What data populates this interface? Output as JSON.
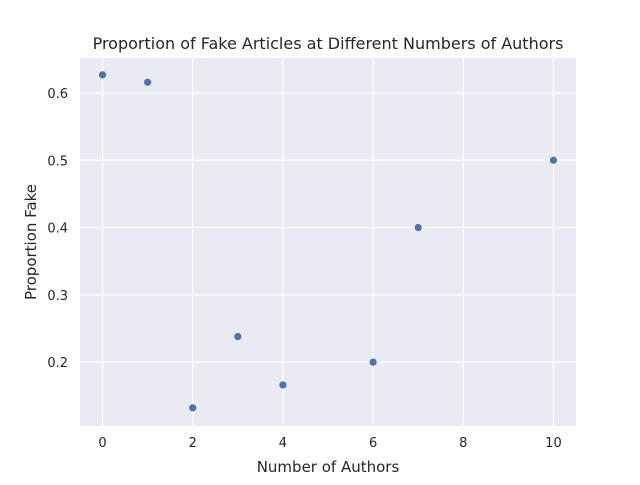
{
  "chart_data": {
    "type": "scatter",
    "title": "Proportion of Fake Articles at Different Numbers of Authors",
    "xlabel": "Number of Authors",
    "ylabel": "Proportion Fake",
    "xlim": [
      -0.5,
      10.5
    ],
    "ylim": [
      0.105,
      0.652
    ],
    "xticks": [
      0,
      2,
      4,
      6,
      8,
      10
    ],
    "yticks": [
      0.2,
      0.3,
      0.4,
      0.5,
      0.6
    ],
    "ytick_labels": [
      "0.2",
      "0.3",
      "0.4",
      "0.5",
      "0.6"
    ],
    "grid": true,
    "legend": false,
    "background_color": "#eaeaf2",
    "grid_color": "#ffffff",
    "marker_color": "#4c72b0",
    "points": [
      {
        "x": 0,
        "y": 0.627
      },
      {
        "x": 1,
        "y": 0.616
      },
      {
        "x": 2,
        "y": 0.132
      },
      {
        "x": 3,
        "y": 0.238
      },
      {
        "x": 4,
        "y": 0.166
      },
      {
        "x": 6,
        "y": 0.2
      },
      {
        "x": 7,
        "y": 0.4
      },
      {
        "x": 10,
        "y": 0.5
      }
    ]
  }
}
